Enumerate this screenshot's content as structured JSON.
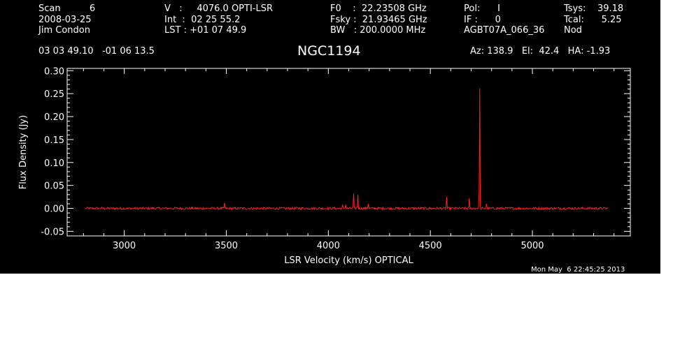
{
  "header": {
    "col1": [
      "Scan          6",
      "2008-03-25",
      "Jim Condon"
    ],
    "col2": [
      "V   :     4076.0 OPTI-LSR",
      "Int  :  02 25 55.2",
      "LST : +01 07 49.9"
    ],
    "col3": [
      "F0    :  22.23508 GHz",
      "Fsky :  21.93465 GHz",
      "BW   : 200.0000 MHz"
    ],
    "col4": [
      "Pol:      I",
      "IF :      0",
      "AGBT07A_066_36"
    ],
    "col5": [
      "Tsys:    39.18",
      "Tcal:      5.25",
      "Nod"
    ],
    "coords": "03 03 49.10   -01 06 13.5",
    "source": "NGC1194",
    "pointing": "Az: 138.9   El:  42.4   HA: -1.93"
  },
  "timestamp": "Mon May  6 22:45:25 2013",
  "colors": {
    "background": "#000000",
    "axes": "#ffffff",
    "trace": "#ff2020"
  },
  "chart_data": {
    "type": "line",
    "title": "NGC1194",
    "xlabel": "LSR Velocity (km/s) OPTICAL",
    "ylabel": "Flux Density (Jy)",
    "xlim": [
      2720,
      5480
    ],
    "ylim": [
      -0.06,
      0.305
    ],
    "xticks": [
      3000,
      3500,
      4000,
      4500,
      5000
    ],
    "xtick_labels": [
      "3000",
      "3500",
      "4000",
      "4500",
      "5000"
    ],
    "yticks": [
      -0.05,
      0.0,
      0.05,
      0.1,
      0.15,
      0.2,
      0.25,
      0.3
    ],
    "ytick_labels": [
      "-0.05",
      "0.00",
      "0.05",
      "0.10",
      "0.15",
      "0.20",
      "0.25",
      "0.30"
    ],
    "grid": false,
    "series": [
      {
        "color": "#ff2020",
        "x_range": [
          2810,
          5370
        ],
        "baseline": 0.0,
        "noise_rms": 0.0015,
        "features": [
          {
            "x": 3490,
            "y": 0.012
          },
          {
            "x": 4070,
            "y": 0.008
          },
          {
            "x": 4085,
            "y": 0.008
          },
          {
            "x": 4125,
            "y": 0.032
          },
          {
            "x": 4145,
            "y": 0.03
          },
          {
            "x": 4195,
            "y": 0.01
          },
          {
            "x": 4580,
            "y": 0.025
          },
          {
            "x": 4690,
            "y": 0.022
          },
          {
            "x": 4742,
            "y": 0.262
          },
          {
            "x": 4775,
            "y": 0.01
          }
        ]
      }
    ]
  }
}
